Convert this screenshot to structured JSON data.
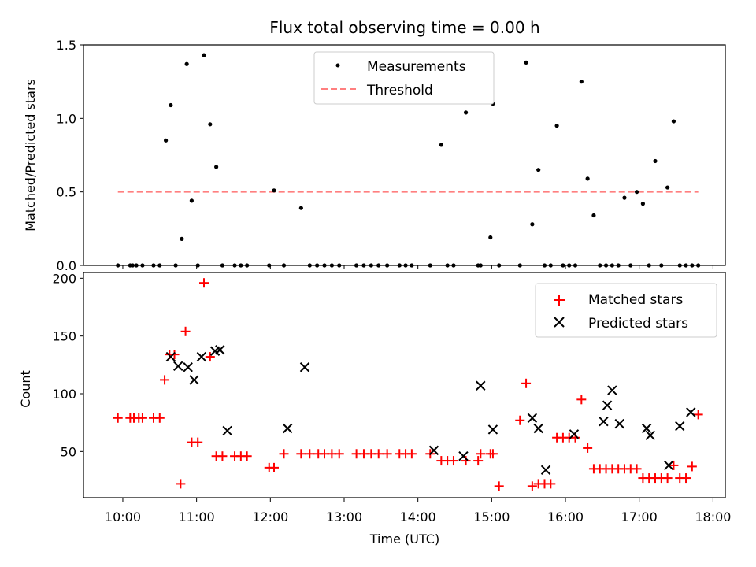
{
  "title": "Flux total observing time = 0.00 h",
  "chart_data": [
    {
      "type": "scatter",
      "ylabel": "Matched/Predicted stars",
      "xlabel": "",
      "xlim": [
        "09:28",
        "18:10"
      ],
      "ylim": [
        0,
        1.5
      ],
      "yticks": [
        0.0,
        0.5,
        1.0,
        1.5
      ],
      "ytick_labels": [
        "0.0",
        "0.5",
        "1.0",
        "1.5"
      ],
      "legend_position": "upper center",
      "series": [
        {
          "name": "Measurements",
          "marker": "dot",
          "color": "#000000",
          "x": [
            "09:56",
            "10:06",
            "10:08",
            "10:11",
            "10:16",
            "10:25",
            "10:30",
            "10:35",
            "10:39",
            "10:43",
            "10:48",
            "10:52",
            "10:56",
            "11:01",
            "11:06",
            "11:11",
            "11:16",
            "11:21",
            "11:31",
            "11:36",
            "11:41",
            "11:59",
            "12:03",
            "12:11",
            "12:25",
            "12:32",
            "12:38",
            "12:44",
            "12:50",
            "12:56",
            "13:10",
            "13:16",
            "13:22",
            "13:28",
            "13:35",
            "13:45",
            "13:50",
            "13:55",
            "14:10",
            "14:19",
            "14:24",
            "14:29",
            "14:39",
            "14:49",
            "14:51",
            "14:59",
            "15:01",
            "15:06",
            "15:23",
            "15:28",
            "15:33",
            "15:38",
            "15:43",
            "15:48",
            "15:53",
            "15:58",
            "16:03",
            "16:08",
            "16:13",
            "16:18",
            "16:23",
            "16:28",
            "16:33",
            "16:38",
            "16:43",
            "16:48",
            "16:53",
            "16:58",
            "17:03",
            "17:08",
            "17:13",
            "17:18",
            "17:23",
            "17:28",
            "17:33",
            "17:38",
            "17:43",
            "17:48"
          ],
          "y": [
            0,
            0,
            0,
            0,
            0,
            0,
            0,
            0.85,
            1.09,
            0,
            0.18,
            1.37,
            0.44,
            0,
            1.43,
            0.96,
            0.67,
            0,
            0,
            0,
            0,
            0,
            0.51,
            0,
            0.39,
            0,
            0,
            0,
            0,
            0,
            0,
            0,
            0,
            0,
            0,
            0,
            0,
            0,
            0,
            0.82,
            0,
            0,
            1.04,
            0,
            0,
            0.19,
            1.1,
            0,
            0,
            1.38,
            0.28,
            0.65,
            0,
            0,
            0.95,
            0,
            0,
            0,
            1.25,
            0.59,
            0.34,
            0,
            0,
            0,
            0,
            0.46,
            0,
            0.5,
            0.42,
            0,
            0.71,
            0,
            0.53,
            0.98,
            0,
            0,
            0,
            0
          ]
        },
        {
          "name": "Threshold",
          "style": "dashed",
          "color": "#ff7f7f",
          "x": [
            "09:56",
            "17:48"
          ],
          "y": [
            0.5,
            0.5
          ]
        }
      ]
    },
    {
      "type": "scatter",
      "ylabel": "Count",
      "xlabel": "Time (UTC)",
      "xlim": [
        "09:28",
        "18:10"
      ],
      "ylim": [
        10,
        205
      ],
      "yticks": [
        50,
        100,
        150,
        200
      ],
      "ytick_labels": [
        "50",
        "100",
        "150",
        "200"
      ],
      "xticks": [
        "10:00",
        "11:00",
        "12:00",
        "13:00",
        "14:00",
        "15:00",
        "16:00",
        "17:00",
        "18:00"
      ],
      "legend_position": "upper right",
      "series": [
        {
          "name": "Matched stars",
          "marker": "plus",
          "color": "#ff0000",
          "x": [
            "09:56",
            "10:06",
            "10:09",
            "10:13",
            "10:16",
            "10:25",
            "10:30",
            "10:34",
            "10:38",
            "10:42",
            "10:47",
            "10:51",
            "10:56",
            "11:01",
            "11:06",
            "11:11",
            "11:16",
            "11:21",
            "11:31",
            "11:36",
            "11:41",
            "11:59",
            "12:03",
            "12:11",
            "12:25",
            "12:32",
            "12:39",
            "12:44",
            "12:50",
            "12:56",
            "13:10",
            "13:16",
            "13:22",
            "13:28",
            "13:35",
            "13:45",
            "13:50",
            "13:55",
            "14:10",
            "14:19",
            "14:24",
            "14:29",
            "14:39",
            "14:49",
            "14:51",
            "14:59",
            "15:01",
            "15:06",
            "15:23",
            "15:28",
            "15:33",
            "15:38",
            "15:43",
            "15:48",
            "15:53",
            "15:58",
            "16:03",
            "16:08",
            "16:13",
            "16:18",
            "16:23",
            "16:28",
            "16:33",
            "16:38",
            "16:43",
            "16:48",
            "16:53",
            "16:58",
            "17:03",
            "17:08",
            "17:13",
            "17:18",
            "17:23",
            "17:28",
            "17:33",
            "17:38",
            "17:43",
            "17:48"
          ],
          "y": [
            79,
            79,
            79,
            79,
            79,
            79,
            79,
            112,
            134,
            134,
            22,
            154,
            58,
            58,
            196,
            132,
            46,
            46,
            46,
            46,
            46,
            36,
            36,
            48,
            48,
            48,
            48,
            48,
            48,
            48,
            48,
            48,
            48,
            48,
            48,
            48,
            48,
            48,
            48,
            42,
            42,
            42,
            42,
            42,
            48,
            48,
            48,
            20,
            77,
            109,
            20,
            22,
            22,
            22,
            62,
            62,
            62,
            62,
            95,
            53,
            35,
            35,
            35,
            35,
            35,
            35,
            35,
            35,
            27,
            27,
            27,
            27,
            27,
            38,
            27,
            27,
            37,
            82
          ]
        },
        {
          "name": "Predicted stars",
          "marker": "x",
          "color": "#000000",
          "x": [
            "10:39",
            "10:45",
            "10:53",
            "10:58",
            "11:04",
            "11:15",
            "11:19",
            "11:25",
            "12:14",
            "12:28",
            "14:13",
            "14:37",
            "14:51",
            "15:01",
            "15:33",
            "15:38",
            "15:44",
            "16:07",
            "16:31",
            "16:34",
            "16:38",
            "16:44",
            "17:06",
            "17:09",
            "17:24",
            "17:33",
            "17:42"
          ],
          "y": [
            132,
            124,
            123,
            112,
            132,
            137,
            138,
            68,
            70,
            123,
            51,
            46,
            107,
            69,
            79,
            70,
            34,
            65,
            76,
            90,
            103,
            74,
            70,
            64,
            38,
            72,
            84
          ]
        }
      ]
    }
  ]
}
